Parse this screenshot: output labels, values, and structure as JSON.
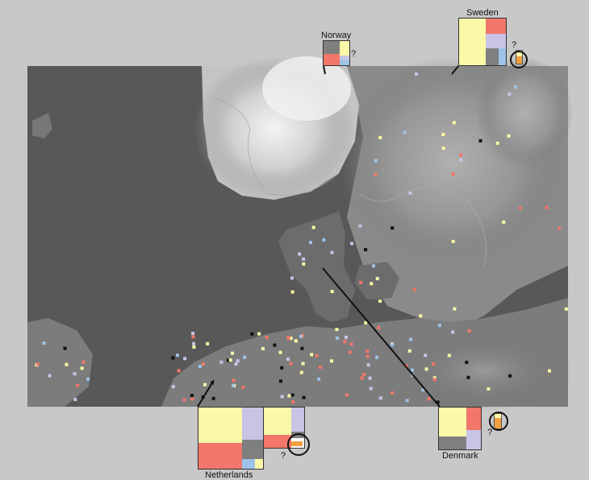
{
  "colors": {
    "background": "#c8c8c8",
    "sea": "#5a5a5a",
    "yellow": "#fbf8a8",
    "red": "#f2766a",
    "gray": "#7f7f7f",
    "lavender": "#c8c4e6",
    "blue": "#9dc3e7",
    "orange": "#f0a040",
    "black": "#111111"
  },
  "countries": {
    "norway": {
      "label": "Norway",
      "unknown": "?"
    },
    "sweden": {
      "label": "Sweden",
      "unknown": "?"
    },
    "netherlands": {
      "label": "Netherlands",
      "unknown": "?"
    },
    "denmark": {
      "label": "Denmark",
      "unknown": "?"
    }
  }
}
